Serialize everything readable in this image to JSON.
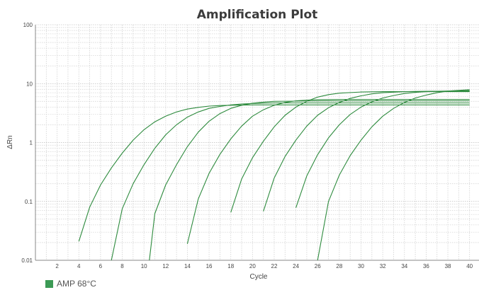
{
  "chart_data": {
    "type": "line",
    "title": "Amplification Plot",
    "xlabel": "Cycle",
    "ylabel": "ΔRn",
    "xlim": [
      0,
      41
    ],
    "ylim": [
      0.01,
      100
    ],
    "yscale": "log",
    "x_ticks": [
      2,
      4,
      6,
      8,
      10,
      12,
      14,
      16,
      18,
      20,
      22,
      24,
      26,
      28,
      30,
      32,
      34,
      36,
      38,
      40
    ],
    "y_ticks": [
      0.01,
      0.1,
      1,
      10,
      100
    ],
    "y_tick_labels": [
      "0.01",
      "0.1",
      "1",
      "10",
      "100"
    ],
    "grid": true,
    "series_color": "#2e8b3e",
    "legend": {
      "label": "AMP 68°C",
      "color": "#3c9a55",
      "placement": "bottom-left"
    },
    "curves": [
      {
        "x": [
          4,
          5,
          6,
          7,
          8,
          9,
          10,
          11,
          12,
          13,
          14,
          15,
          16,
          17,
          18,
          20,
          22,
          25,
          30,
          35,
          40
        ],
        "y": [
          0.021,
          0.08,
          0.19,
          0.37,
          0.66,
          1.1,
          1.65,
          2.25,
          2.8,
          3.3,
          3.7,
          3.95,
          4.15,
          4.25,
          4.3,
          4.35,
          4.35,
          4.35,
          4.35,
          4.35,
          4.35
        ]
      },
      {
        "x": [
          7,
          8,
          9,
          10,
          11,
          12,
          13,
          14,
          15,
          16,
          17,
          18,
          19,
          20,
          22,
          25,
          30,
          35,
          40
        ],
        "y": [
          0.01,
          0.075,
          0.2,
          0.42,
          0.8,
          1.35,
          2.0,
          2.7,
          3.3,
          3.8,
          4.1,
          4.35,
          4.5,
          4.6,
          4.7,
          4.7,
          4.7,
          4.7,
          4.7
        ]
      },
      {
        "x": [
          10.5,
          11,
          12,
          13,
          14,
          15,
          16,
          17,
          18,
          19,
          20,
          21,
          22,
          24,
          27,
          30,
          35,
          40
        ],
        "y": [
          0.01,
          0.062,
          0.19,
          0.42,
          0.85,
          1.5,
          2.3,
          3.1,
          3.8,
          4.3,
          4.65,
          4.85,
          5.0,
          5.05,
          5.1,
          5.1,
          5.1,
          5.1
        ]
      },
      {
        "x": [
          14,
          15,
          16,
          17,
          18,
          19,
          20,
          21,
          22,
          23,
          24,
          25,
          26,
          28,
          30,
          35,
          40
        ],
        "y": [
          0.019,
          0.11,
          0.3,
          0.63,
          1.15,
          1.9,
          2.8,
          3.6,
          4.3,
          4.8,
          5.1,
          5.25,
          5.35,
          5.4,
          5.4,
          5.4,
          5.4
        ]
      },
      {
        "x": [
          18,
          19,
          20,
          21,
          22,
          23,
          24,
          25,
          26,
          27,
          28,
          30,
          32,
          35,
          40
        ],
        "y": [
          0.065,
          0.24,
          0.55,
          1.05,
          1.85,
          2.9,
          4.0,
          5.0,
          5.9,
          6.5,
          6.9,
          7.2,
          7.3,
          7.3,
          7.3
        ]
      },
      {
        "x": [
          21,
          22,
          23,
          24,
          25,
          26,
          27,
          28,
          29,
          30,
          31,
          32,
          34,
          36,
          40
        ],
        "y": [
          0.068,
          0.25,
          0.58,
          1.1,
          1.9,
          2.9,
          3.9,
          4.8,
          5.6,
          6.2,
          6.7,
          7.0,
          7.3,
          7.4,
          7.5
        ]
      },
      {
        "x": [
          24,
          25,
          26,
          27,
          28,
          29,
          30,
          31,
          32,
          33,
          34,
          35,
          36,
          38,
          40
        ],
        "y": [
          0.078,
          0.27,
          0.62,
          1.2,
          2.0,
          3.0,
          4.0,
          4.9,
          5.7,
          6.3,
          6.8,
          7.1,
          7.3,
          7.5,
          7.6
        ]
      },
      {
        "x": [
          26,
          27,
          28,
          29,
          30,
          31,
          32,
          33,
          34,
          35,
          36,
          37,
          38,
          40
        ],
        "y": [
          0.01,
          0.1,
          0.28,
          0.6,
          1.1,
          1.85,
          2.8,
          3.8,
          4.8,
          5.7,
          6.4,
          7.0,
          7.5,
          7.9
        ]
      }
    ]
  }
}
